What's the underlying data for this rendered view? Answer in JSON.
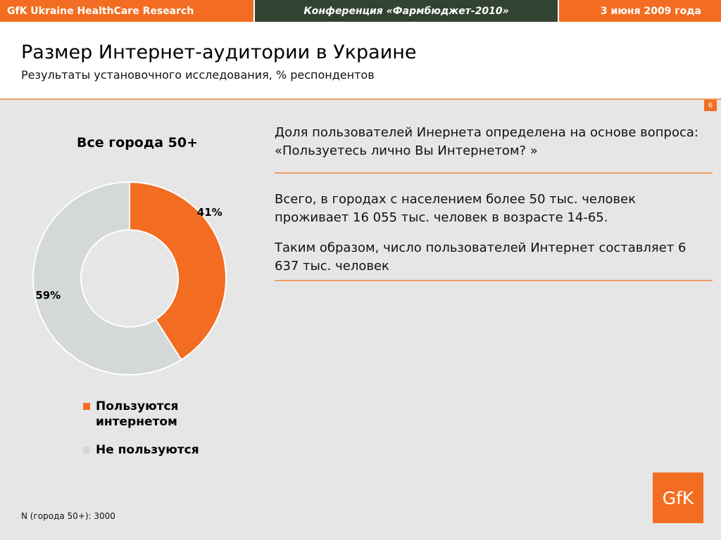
{
  "topbar": {
    "left": "GfK Ukraine HealthCare Research",
    "center": "Конференция «Фармбюджет-2010»",
    "right": "3 июня 2009 года"
  },
  "header": {
    "title": "Размер Интернет-аудитории в Украине",
    "subtitle": "Результаты установочного исследования, % респондентов"
  },
  "page_number": "6",
  "chart_data": {
    "type": "pie",
    "title": "Все города 50+",
    "donut": true,
    "slices": [
      {
        "label": "Пользуются интернетом",
        "value": 41,
        "data_label": "41%",
        "color": "#f26d21"
      },
      {
        "label": "Не пользуются",
        "value": 59,
        "data_label": "59%",
        "color": "#d4d8d9"
      }
    ]
  },
  "legend": {
    "items": [
      {
        "label_line1": "Пользуются",
        "label_line2": "интернетом",
        "color": "#f26d21"
      },
      {
        "label_line1": "Не пользуются",
        "label_line2": "",
        "color": "#d4d8d9"
      }
    ]
  },
  "text": {
    "block1": "Доля пользователей Инернета определена на основе вопроса: «Пользуетесь лично Вы Интернетом? »",
    "block2": "Всего, в городах с населением более 50 тыс. человек проживает 16 055 тыс. человек в возрасте 14-65.",
    "block3": "Таким образом, число пользователей Интернет составляет 6 637 тыс. человек"
  },
  "footnote": "N (города 50+): 3000",
  "logo": "GfK",
  "colors": {
    "accent": "#f26d21",
    "dark": "#334331",
    "grey_slice": "#d4d8d9",
    "background": "#e6e6e6"
  }
}
